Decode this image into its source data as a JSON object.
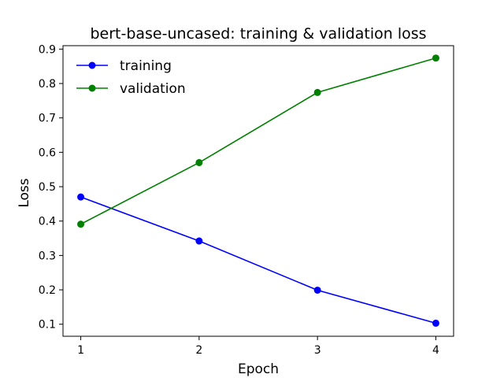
{
  "chart_data": {
    "type": "line",
    "title": "bert-base-uncased: training & validation loss",
    "xlabel": "Epoch",
    "ylabel": "Loss",
    "x": [
      1,
      2,
      3,
      4
    ],
    "xticks": [
      1,
      2,
      3,
      4
    ],
    "yticks": [
      0.1,
      0.2,
      0.3,
      0.4,
      0.5,
      0.6,
      0.7,
      0.8,
      0.9
    ],
    "xlim": [
      0.85,
      4.15
    ],
    "ylim": [
      0.065,
      0.91
    ],
    "grid": false,
    "legend_position": "top-left",
    "series": [
      {
        "name": "training",
        "color": "#0000ff",
        "values": [
          0.47,
          0.342,
          0.199,
          0.103
        ]
      },
      {
        "name": "validation",
        "color": "#008000",
        "values": [
          0.391,
          0.57,
          0.774,
          0.874
        ]
      }
    ]
  }
}
